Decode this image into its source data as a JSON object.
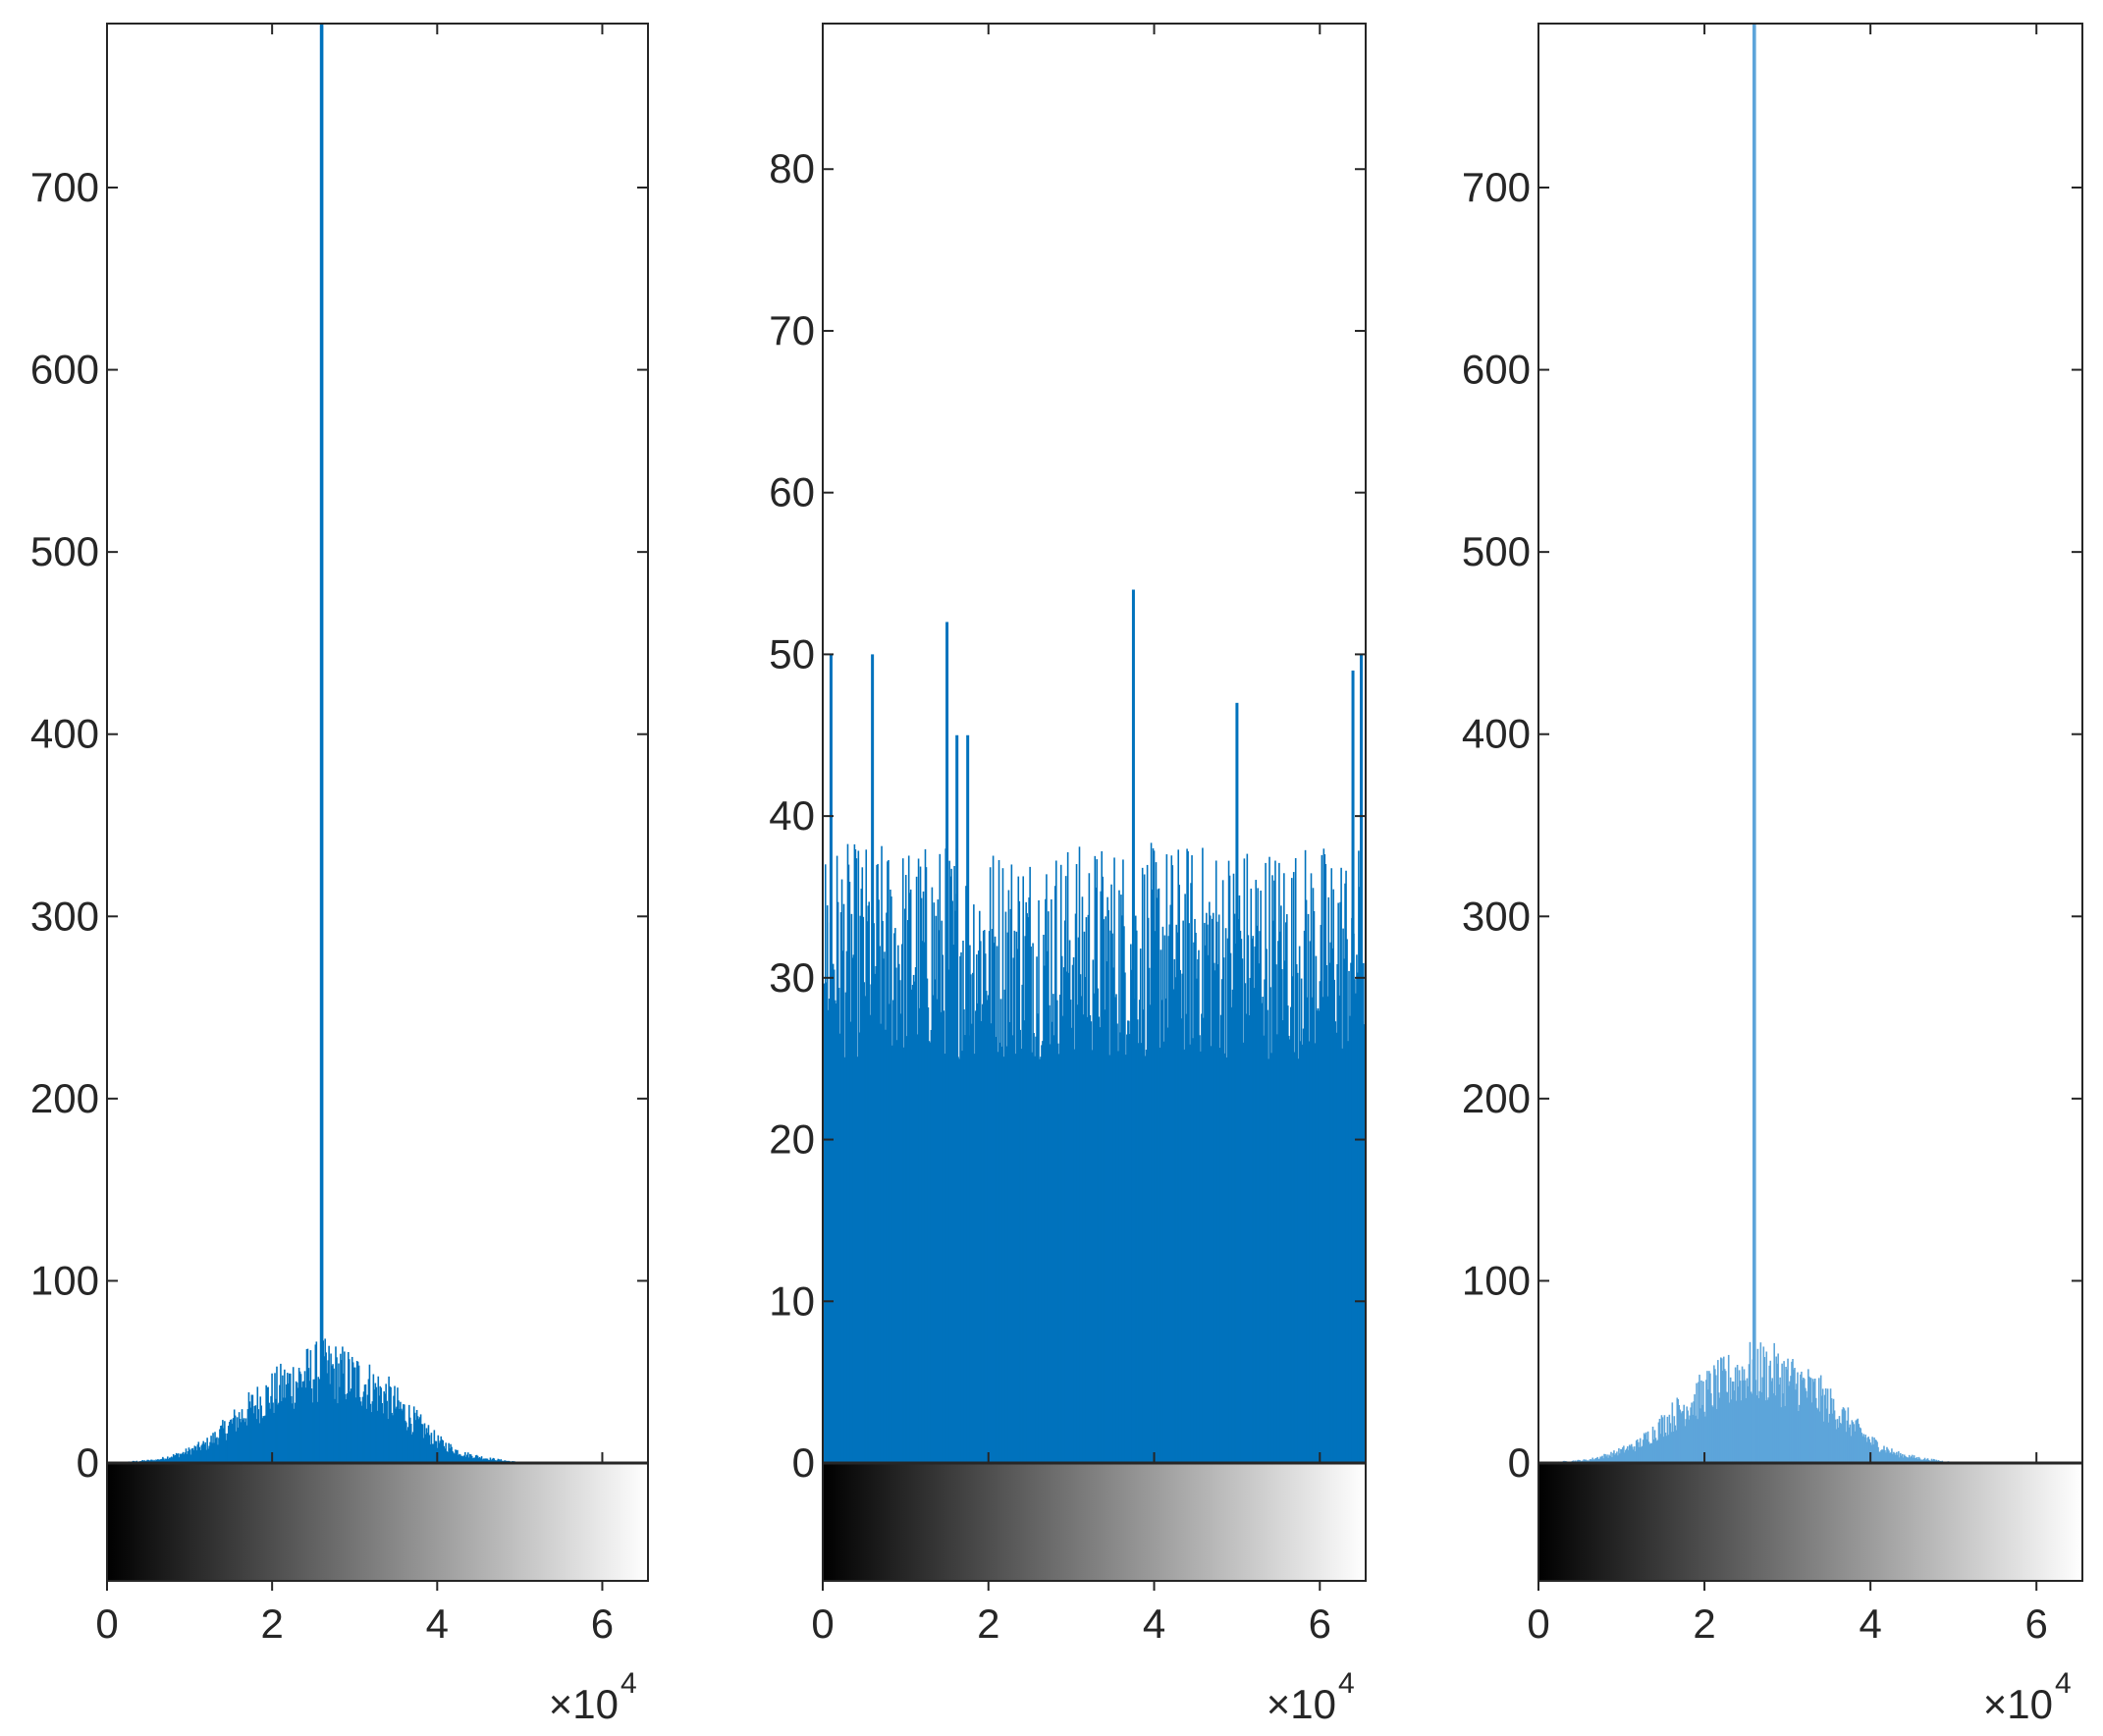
{
  "chart_data": [
    {
      "type": "bar",
      "subtype": "histogram",
      "title": "",
      "xlabel": "",
      "ylabel": "",
      "x_exponent_label": "×10",
      "x_exponent": "4",
      "xlim": [
        0,
        65535
      ],
      "ylim": [
        0,
        790
      ],
      "xticks": [
        0,
        2,
        4,
        6
      ],
      "yticks": [
        0,
        100,
        200,
        300,
        400,
        500,
        600,
        700
      ],
      "grid": false,
      "colorbar": "grayscale",
      "peak": {
        "x": 26000,
        "value": 790
      },
      "envelope": {
        "x": [
          0,
          3000,
          6000,
          9000,
          12000,
          15000,
          18000,
          21000,
          24000,
          26000,
          28000,
          31000,
          34000,
          37000,
          40000,
          43000,
          46000,
          49000,
          52000,
          65535
        ],
        "values": [
          0,
          1,
          2,
          6,
          12,
          25,
          38,
          48,
          56,
          60,
          58,
          52,
          42,
          28,
          14,
          6,
          3,
          1,
          0,
          0
        ]
      },
      "series_color": "#0072BD"
    },
    {
      "type": "bar",
      "subtype": "histogram",
      "title": "",
      "xlabel": "",
      "ylabel": "",
      "x_exponent_label": "×10",
      "x_exponent": "4",
      "xlim": [
        0,
        65535
      ],
      "ylim": [
        0,
        89
      ],
      "xticks": [
        0,
        2,
        4,
        6
      ],
      "yticks": [
        0,
        10,
        20,
        30,
        40,
        50,
        60,
        70,
        80
      ],
      "grid": false,
      "colorbar": "grayscale",
      "typical_level": 32,
      "spikes": {
        "x": [
          1000,
          6000,
          15000,
          16200,
          17500,
          37500,
          50000,
          64000,
          65000
        ],
        "values": [
          50,
          50,
          52,
          45,
          45,
          54,
          47,
          49,
          50
        ]
      },
      "series_color": "#0072BD"
    },
    {
      "type": "bar",
      "subtype": "histogram",
      "title": "",
      "xlabel": "",
      "ylabel": "",
      "x_exponent_label": "×10",
      "x_exponent": "4",
      "xlim": [
        0,
        65535
      ],
      "ylim": [
        0,
        790
      ],
      "xticks": [
        0,
        2,
        4,
        6
      ],
      "yticks": [
        0,
        100,
        200,
        300,
        400,
        500,
        600,
        700
      ],
      "grid": false,
      "colorbar": "grayscale",
      "peak": {
        "x": 26000,
        "value": 790
      },
      "envelope": {
        "x": [
          0,
          3000,
          6000,
          9000,
          12000,
          15000,
          18000,
          21000,
          24000,
          26000,
          28000,
          31000,
          34000,
          37000,
          40000,
          43000,
          46000,
          49000,
          52000,
          65535
        ],
        "values": [
          0,
          1,
          2,
          6,
          12,
          25,
          38,
          48,
          56,
          60,
          58,
          52,
          42,
          28,
          14,
          6,
          3,
          1,
          0,
          0
        ]
      },
      "series_color": "#5DA5DA"
    }
  ]
}
